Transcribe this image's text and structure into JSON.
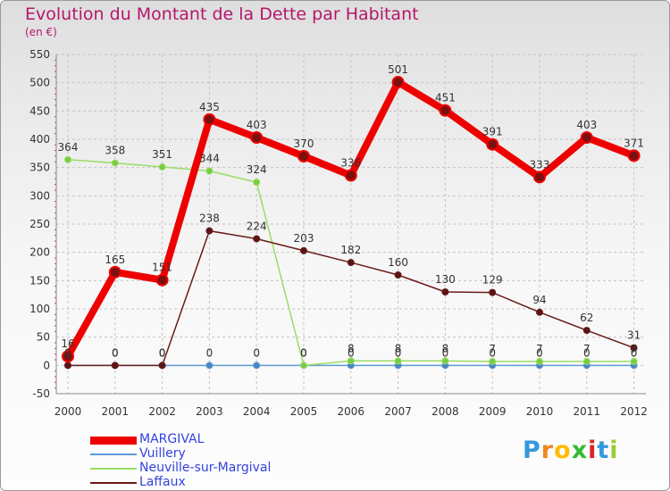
{
  "chart_data": {
    "type": "line",
    "title": "Evolution du Montant de la Dette par Habitant",
    "subtitle": "(en €)",
    "xlabel": "",
    "ylabel": "",
    "categories": [
      "2000",
      "2001",
      "2002",
      "2003",
      "2004",
      "2005",
      "2006",
      "2007",
      "2008",
      "2009",
      "2010",
      "2011",
      "2012"
    ],
    "ylim": [
      -50,
      550
    ],
    "yticks": [
      "550",
      "500",
      "450",
      "400",
      "350",
      "300",
      "250",
      "200",
      "150",
      "100",
      "50",
      "0",
      "-50"
    ],
    "grid": true,
    "series": [
      {
        "name": "MARGIVAL",
        "color": "#ee0000",
        "values": [
          16,
          165,
          151,
          435,
          403,
          370,
          336,
          501,
          451,
          391,
          333,
          403,
          371
        ],
        "labels": [
          "16",
          "165",
          "151",
          "435",
          "403",
          "370",
          "336",
          "501",
          "451",
          "391",
          "333",
          "403",
          "371"
        ]
      },
      {
        "name": "Vuillery",
        "color": "#5b9bd5",
        "values": [
          0,
          0,
          0,
          0,
          0,
          0,
          0,
          0,
          0,
          0,
          0,
          0,
          0
        ],
        "labels": [
          "0",
          "0",
          "0",
          "0",
          "0",
          "0",
          "0",
          "0",
          "0",
          "0",
          "0",
          "0",
          "0"
        ]
      },
      {
        "name": "Neuville-sur-Margival",
        "color": "#99dd66",
        "values": [
          364,
          358,
          351,
          344,
          324,
          0,
          8,
          8,
          8,
          7,
          7,
          7,
          7
        ],
        "labels": [
          "364",
          "358",
          "351",
          "344",
          "324",
          "0",
          "8",
          "8",
          "8",
          "7",
          "7",
          "7",
          "7"
        ]
      },
      {
        "name": "Laffaux",
        "color": "#6b1a1a",
        "values": [
          0,
          0,
          0,
          238,
          224,
          203,
          182,
          160,
          130,
          129,
          94,
          62,
          31
        ],
        "labels": [
          "0",
          "0",
          "0",
          "238",
          "224",
          "203",
          "182",
          "160",
          "130",
          "129",
          "94",
          "62",
          "31"
        ]
      }
    ]
  },
  "logo": {
    "text": "Proxiti",
    "colors": [
      "#3399dd",
      "#ee8822",
      "#ffbb00",
      "#33bb33",
      "#dd2222",
      "#3399dd",
      "#99cc33"
    ]
  }
}
